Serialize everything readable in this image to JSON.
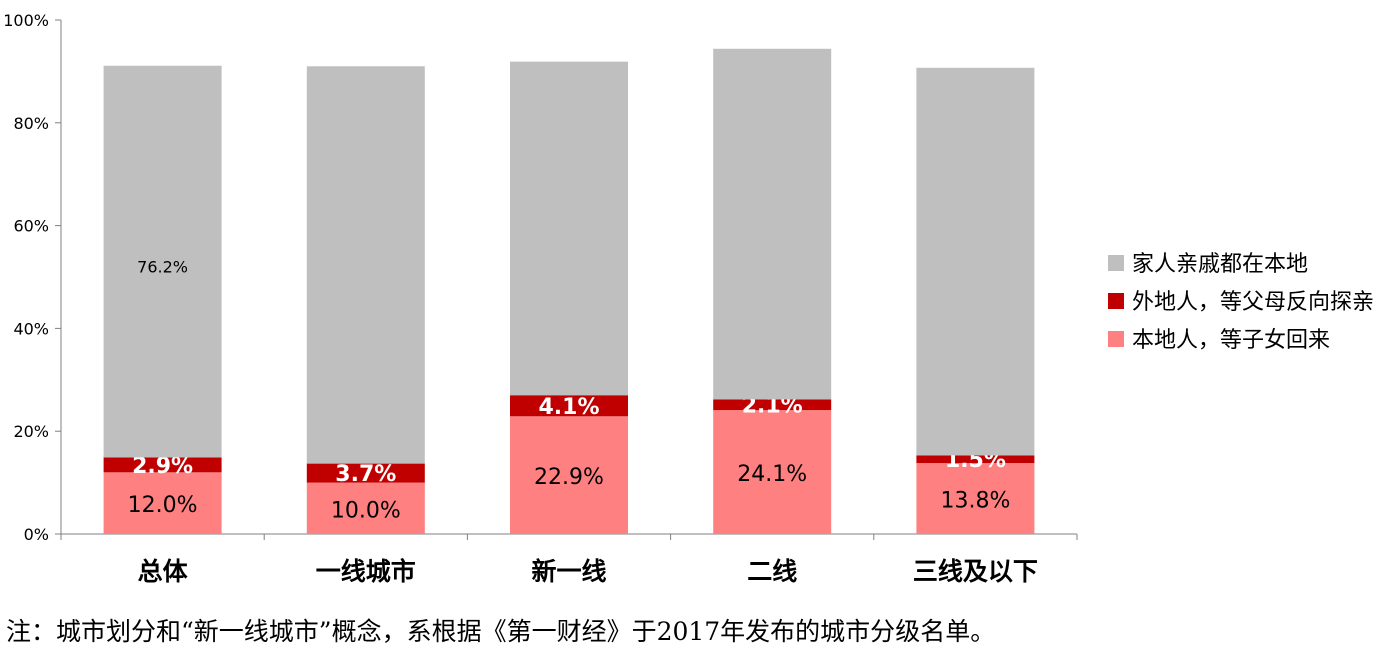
{
  "chart_data": {
    "type": "bar",
    "stacked": true,
    "categories": [
      "总体",
      "一线城市",
      "新一线",
      "二线",
      "三线及以下"
    ],
    "series": [
      {
        "name": "本地人，等子女回来",
        "color": "#ff8080",
        "values": [
          12.0,
          10.0,
          22.9,
          24.1,
          13.8
        ],
        "labels": [
          "12.0%",
          "10.0%",
          "22.9%",
          "24.1%",
          "13.8%"
        ]
      },
      {
        "name": "外地人，等父母反向探亲",
        "color": "#c00000",
        "values": [
          2.9,
          3.7,
          4.1,
          2.1,
          1.5
        ],
        "labels": [
          "2.9%",
          "3.7%",
          "4.1%",
          "2.1%",
          "1.5%"
        ]
      },
      {
        "name": "家人亲戚都在本地",
        "color": "#bfbfbf",
        "values": [
          76.2,
          77.3,
          64.9,
          68.2,
          75.4
        ],
        "labels": [
          "76.2%",
          "",
          "",
          "",
          ""
        ]
      }
    ],
    "y_ticks": [
      "0%",
      "20%",
      "40%",
      "60%",
      "80%",
      "100%"
    ],
    "ylim": [
      0,
      100
    ],
    "grid": false,
    "legend": "right"
  },
  "note": "注：城市划分和“新一线城市”概念，系根据《第一财经》于2017年发布的城市分级名单。"
}
